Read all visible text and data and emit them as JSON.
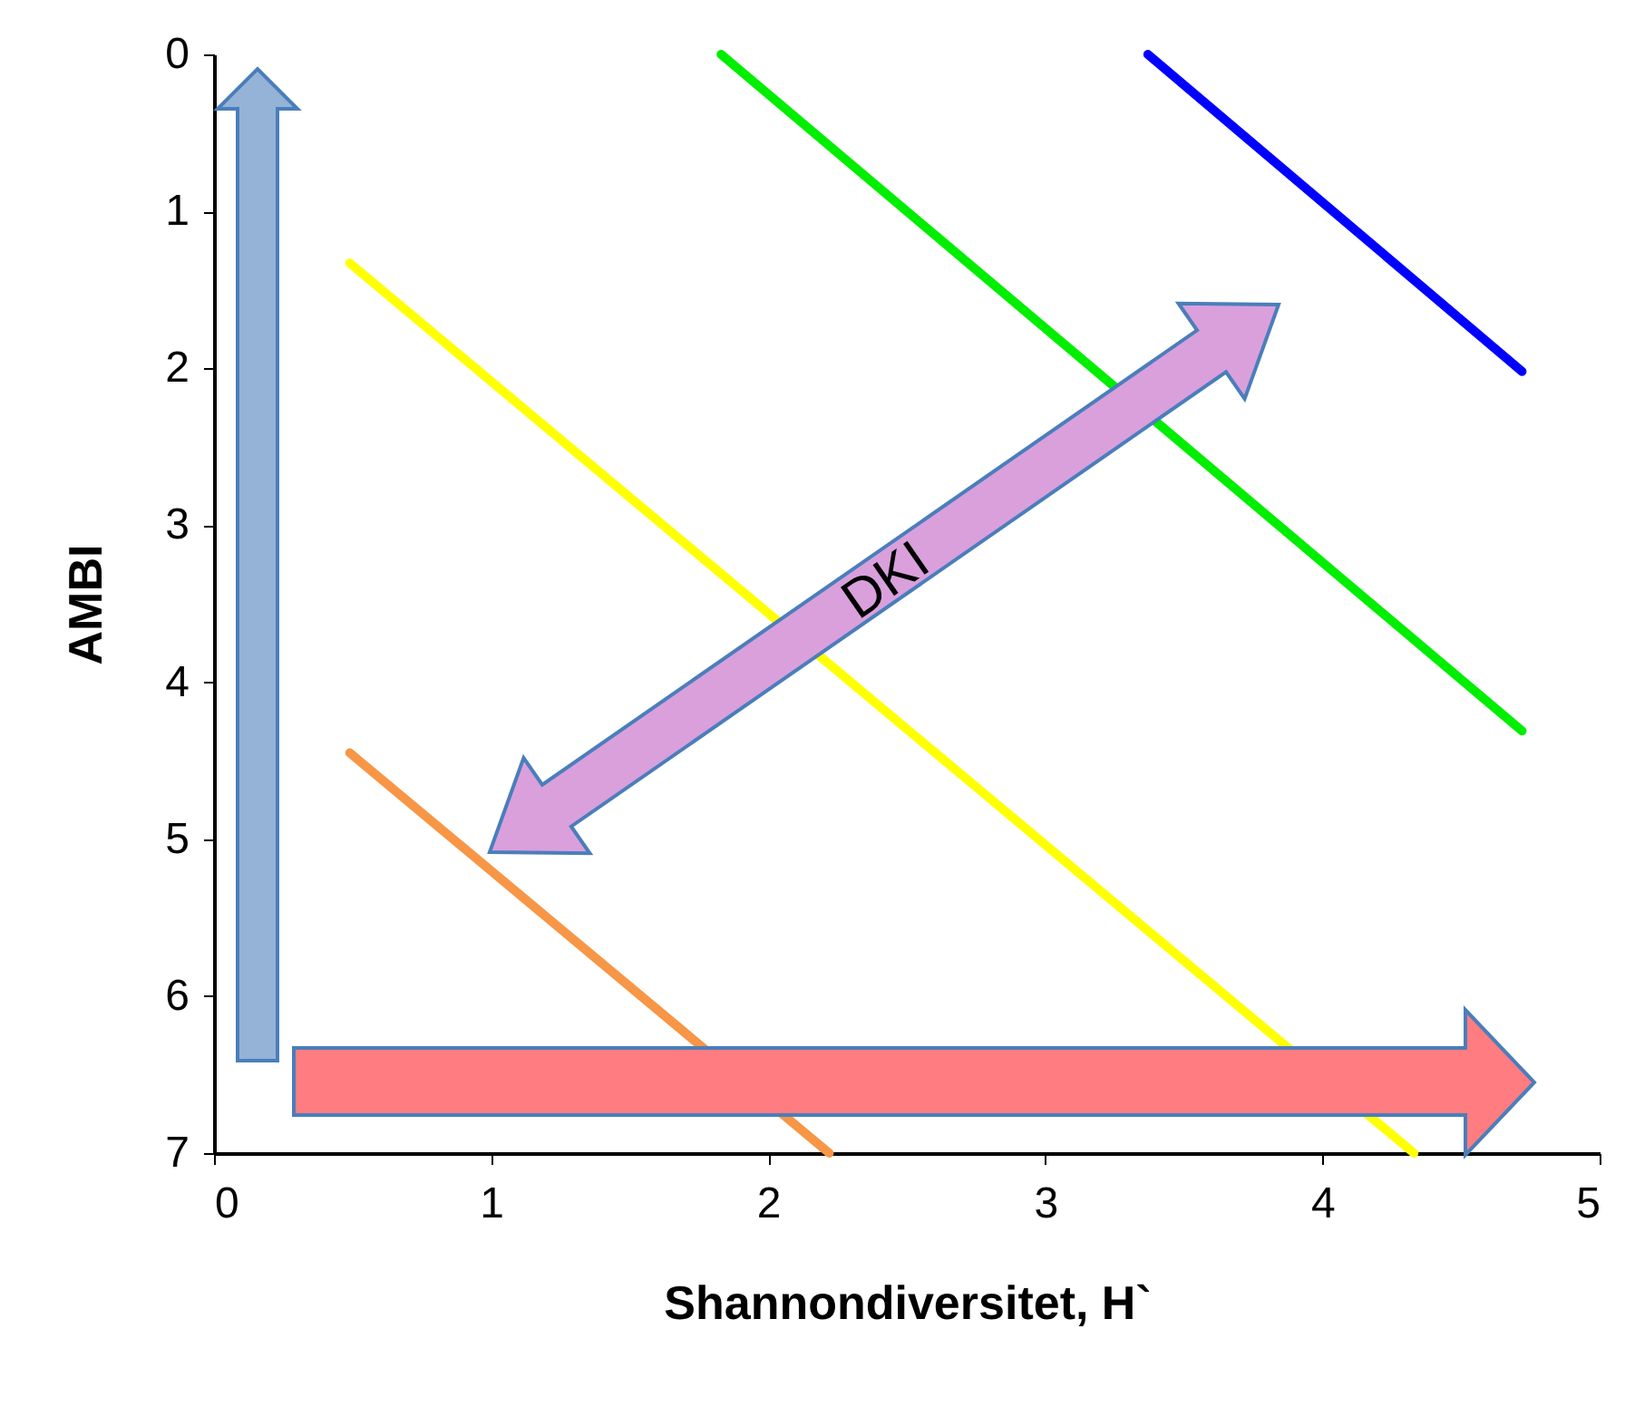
{
  "chart_data": {
    "type": "line",
    "xlabel": "Shannondiversitet, H`",
    "ylabel": "AMBI",
    "xlim": [
      0,
      5
    ],
    "xticks": [
      0,
      1,
      2,
      3,
      4,
      5
    ],
    "ylim": [
      7,
      0
    ],
    "yticks": [
      0,
      1,
      2,
      3,
      4,
      5,
      6,
      7
    ],
    "grid": false,
    "legend": false,
    "marker": "none",
    "line_style": "solid",
    "annotations": [
      "DKI"
    ],
    "series": [
      {
        "color": "#0000ff",
        "x": [
          3.37,
          4.72
        ],
        "values": [
          0,
          2.02
        ]
      },
      {
        "color": "#00ee00",
        "x": [
          1.83,
          4.72
        ],
        "values": [
          0,
          4.31
        ]
      },
      {
        "color": "#ffff00",
        "x": [
          0.49,
          4.33
        ],
        "values": [
          1.33,
          7
        ]
      },
      {
        "color": "#f79646",
        "x": [
          0.49,
          2.22
        ],
        "values": [
          4.45,
          7
        ]
      }
    ]
  }
}
